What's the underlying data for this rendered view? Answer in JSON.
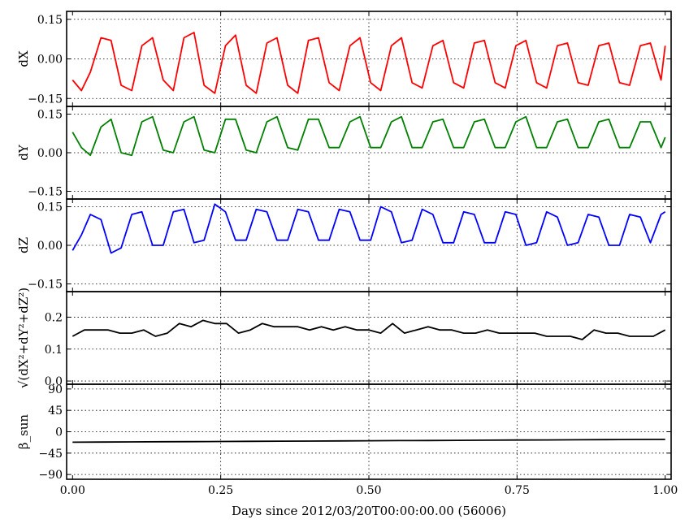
{
  "chart_data": [
    {
      "type": "line",
      "ylabel": "dX",
      "color": "#ff0000",
      "ylim": [
        -0.18,
        0.18
      ],
      "yticks": [
        -0.15,
        0.0,
        0.15
      ],
      "ytick_labels": [
        "−0.15",
        "0.00",
        "0.15"
      ],
      "xlim": [
        0.0,
        1.0
      ],
      "series": [
        {
          "x": [
            0.0,
            0.015,
            0.03,
            0.048,
            0.065,
            0.082,
            0.1,
            0.117,
            0.135,
            0.153,
            0.17,
            0.188,
            0.205,
            0.222,
            0.24,
            0.258,
            0.275,
            0.293,
            0.31,
            0.328,
            0.345,
            0.363,
            0.38,
            0.398,
            0.415,
            0.433,
            0.45,
            0.468,
            0.485,
            0.503,
            0.52,
            0.538,
            0.555,
            0.573,
            0.59,
            0.608,
            0.625,
            0.643,
            0.66,
            0.678,
            0.695,
            0.713,
            0.73,
            0.748,
            0.765,
            0.783,
            0.8,
            0.818,
            0.835,
            0.853,
            0.87,
            0.888,
            0.905,
            0.923,
            0.94,
            0.958,
            0.975,
            0.993,
            1.0
          ],
          "y": [
            -0.08,
            -0.12,
            -0.05,
            0.08,
            0.07,
            -0.1,
            -0.12,
            0.05,
            0.08,
            -0.08,
            -0.12,
            0.08,
            0.1,
            -0.1,
            -0.13,
            0.05,
            0.09,
            -0.1,
            -0.13,
            0.06,
            0.08,
            -0.1,
            -0.13,
            0.07,
            0.08,
            -0.09,
            -0.12,
            0.05,
            0.08,
            -0.09,
            -0.12,
            0.05,
            0.08,
            -0.09,
            -0.11,
            0.05,
            0.07,
            -0.09,
            -0.11,
            0.06,
            0.07,
            -0.09,
            -0.11,
            0.05,
            0.07,
            -0.09,
            -0.11,
            0.05,
            0.06,
            -0.09,
            -0.1,
            0.05,
            0.06,
            -0.09,
            -0.1,
            0.05,
            0.06,
            -0.08,
            0.05
          ]
        }
      ]
    },
    {
      "type": "line",
      "ylabel": "dY",
      "color": "#008000",
      "ylim": [
        -0.18,
        0.18
      ],
      "yticks": [
        -0.15,
        0.0,
        0.15
      ],
      "ytick_labels": [
        "−0.15",
        "0.00",
        "0.15"
      ],
      "xlim": [
        0.0,
        1.0
      ],
      "series": [
        {
          "x": [
            0.0,
            0.015,
            0.03,
            0.048,
            0.065,
            0.082,
            0.1,
            0.117,
            0.135,
            0.153,
            0.17,
            0.188,
            0.205,
            0.222,
            0.24,
            0.258,
            0.275,
            0.293,
            0.31,
            0.328,
            0.345,
            0.363,
            0.38,
            0.398,
            0.415,
            0.433,
            0.45,
            0.468,
            0.485,
            0.503,
            0.52,
            0.538,
            0.555,
            0.573,
            0.59,
            0.608,
            0.625,
            0.643,
            0.66,
            0.678,
            0.695,
            0.713,
            0.73,
            0.748,
            0.765,
            0.783,
            0.8,
            0.818,
            0.835,
            0.853,
            0.87,
            0.888,
            0.905,
            0.923,
            0.94,
            0.958,
            0.975,
            0.993,
            1.0
          ],
          "y": [
            0.08,
            0.02,
            -0.01,
            0.1,
            0.13,
            0.0,
            -0.01,
            0.12,
            0.14,
            0.01,
            0.0,
            0.12,
            0.14,
            0.01,
            0.0,
            0.13,
            0.13,
            0.01,
            0.0,
            0.12,
            0.14,
            0.02,
            0.01,
            0.13,
            0.13,
            0.02,
            0.02,
            0.12,
            0.14,
            0.02,
            0.02,
            0.12,
            0.14,
            0.02,
            0.02,
            0.12,
            0.13,
            0.02,
            0.02,
            0.12,
            0.13,
            0.02,
            0.02,
            0.12,
            0.14,
            0.02,
            0.02,
            0.12,
            0.13,
            0.02,
            0.02,
            0.12,
            0.13,
            0.02,
            0.02,
            0.12,
            0.12,
            0.02,
            0.06
          ]
        }
      ]
    },
    {
      "type": "line",
      "ylabel": "dZ",
      "color": "#0000ff",
      "ylim": [
        -0.18,
        0.18
      ],
      "yticks": [
        -0.15,
        0.0,
        0.15
      ],
      "ytick_labels": [
        "−0.15",
        "0.00",
        "0.15"
      ],
      "xlim": [
        0.0,
        1.0
      ],
      "series": [
        {
          "x": [
            0.0,
            0.015,
            0.03,
            0.048,
            0.065,
            0.082,
            0.1,
            0.117,
            0.135,
            0.153,
            0.17,
            0.188,
            0.205,
            0.222,
            0.24,
            0.258,
            0.275,
            0.293,
            0.31,
            0.328,
            0.345,
            0.363,
            0.38,
            0.398,
            0.415,
            0.433,
            0.45,
            0.468,
            0.485,
            0.503,
            0.52,
            0.538,
            0.555,
            0.573,
            0.59,
            0.608,
            0.625,
            0.643,
            0.66,
            0.678,
            0.695,
            0.713,
            0.73,
            0.748,
            0.765,
            0.783,
            0.8,
            0.818,
            0.835,
            0.853,
            0.87,
            0.888,
            0.905,
            0.923,
            0.94,
            0.958,
            0.975,
            0.993,
            1.0
          ],
          "y": [
            -0.02,
            0.04,
            0.12,
            0.1,
            -0.03,
            -0.01,
            0.12,
            0.13,
            -0.0,
            0.0,
            0.13,
            0.14,
            0.01,
            0.02,
            0.16,
            0.13,
            0.02,
            0.02,
            0.14,
            0.13,
            0.02,
            0.02,
            0.14,
            0.13,
            0.02,
            0.02,
            0.14,
            0.13,
            0.02,
            0.02,
            0.15,
            0.13,
            0.01,
            0.02,
            0.14,
            0.12,
            0.01,
            0.01,
            0.13,
            0.12,
            0.01,
            0.01,
            0.13,
            0.12,
            0.0,
            0.01,
            0.13,
            0.11,
            0.0,
            0.01,
            0.12,
            0.11,
            0.0,
            0.0,
            0.12,
            0.11,
            0.01,
            0.12,
            0.13
          ]
        }
      ]
    },
    {
      "type": "line",
      "ylabel": "√(dX²+dY²+dZ²)",
      "color": "#000000",
      "ylim": [
        -0.01,
        0.28
      ],
      "yticks": [
        0.0,
        0.1,
        0.2
      ],
      "ytick_labels": [
        "0.0",
        "0.1",
        "0.2"
      ],
      "xlim": [
        0.0,
        1.0
      ],
      "series": [
        {
          "x": [
            0.0,
            0.02,
            0.04,
            0.06,
            0.08,
            0.1,
            0.12,
            0.14,
            0.16,
            0.18,
            0.2,
            0.22,
            0.24,
            0.26,
            0.28,
            0.3,
            0.32,
            0.34,
            0.36,
            0.38,
            0.4,
            0.42,
            0.44,
            0.46,
            0.48,
            0.5,
            0.52,
            0.54,
            0.56,
            0.58,
            0.6,
            0.62,
            0.64,
            0.66,
            0.68,
            0.7,
            0.72,
            0.74,
            0.76,
            0.78,
            0.8,
            0.82,
            0.84,
            0.86,
            0.88,
            0.9,
            0.92,
            0.94,
            0.96,
            0.98,
            1.0
          ],
          "y": [
            0.14,
            0.16,
            0.16,
            0.16,
            0.15,
            0.15,
            0.16,
            0.14,
            0.15,
            0.18,
            0.17,
            0.19,
            0.18,
            0.18,
            0.15,
            0.16,
            0.18,
            0.17,
            0.17,
            0.17,
            0.16,
            0.17,
            0.16,
            0.17,
            0.16,
            0.16,
            0.15,
            0.18,
            0.15,
            0.16,
            0.17,
            0.16,
            0.16,
            0.15,
            0.15,
            0.16,
            0.15,
            0.15,
            0.15,
            0.15,
            0.14,
            0.14,
            0.14,
            0.13,
            0.16,
            0.15,
            0.15,
            0.14,
            0.14,
            0.14,
            0.16
          ]
        }
      ]
    },
    {
      "type": "line",
      "ylabel": "β_sun",
      "color": "#000000",
      "ylim": [
        -100,
        100
      ],
      "yticks": [
        -90,
        -45,
        0,
        45,
        90
      ],
      "ytick_labels": [
        "−90",
        "−45",
        "0",
        "45",
        "90"
      ],
      "xlim": [
        0.0,
        1.0
      ],
      "series": [
        {
          "x": [
            0.0,
            0.05,
            0.1,
            0.15,
            0.2,
            0.25,
            0.3,
            0.35,
            0.4,
            0.45,
            0.5,
            0.55,
            0.6,
            0.65,
            0.7,
            0.75,
            0.8,
            0.85,
            0.9,
            0.95,
            1.0
          ],
          "y": [
            -22.0,
            -21.7,
            -21.4,
            -21.1,
            -20.8,
            -20.5,
            -20.2,
            -19.9,
            -19.6,
            -19.3,
            -19.0,
            -18.7,
            -18.4,
            -18.1,
            -17.8,
            -17.5,
            -17.2,
            -16.9,
            -16.6,
            -16.3,
            -16.0
          ]
        }
      ]
    }
  ],
  "xticks": [
    0.0,
    0.25,
    0.5,
    0.75,
    1.0
  ],
  "xtick_labels": [
    "0.00",
    "0.25",
    "0.50",
    "0.75",
    "1.00"
  ],
  "xlabel": "Days since 2012/03/20T00:00:00.00 (56006)",
  "grid": true
}
